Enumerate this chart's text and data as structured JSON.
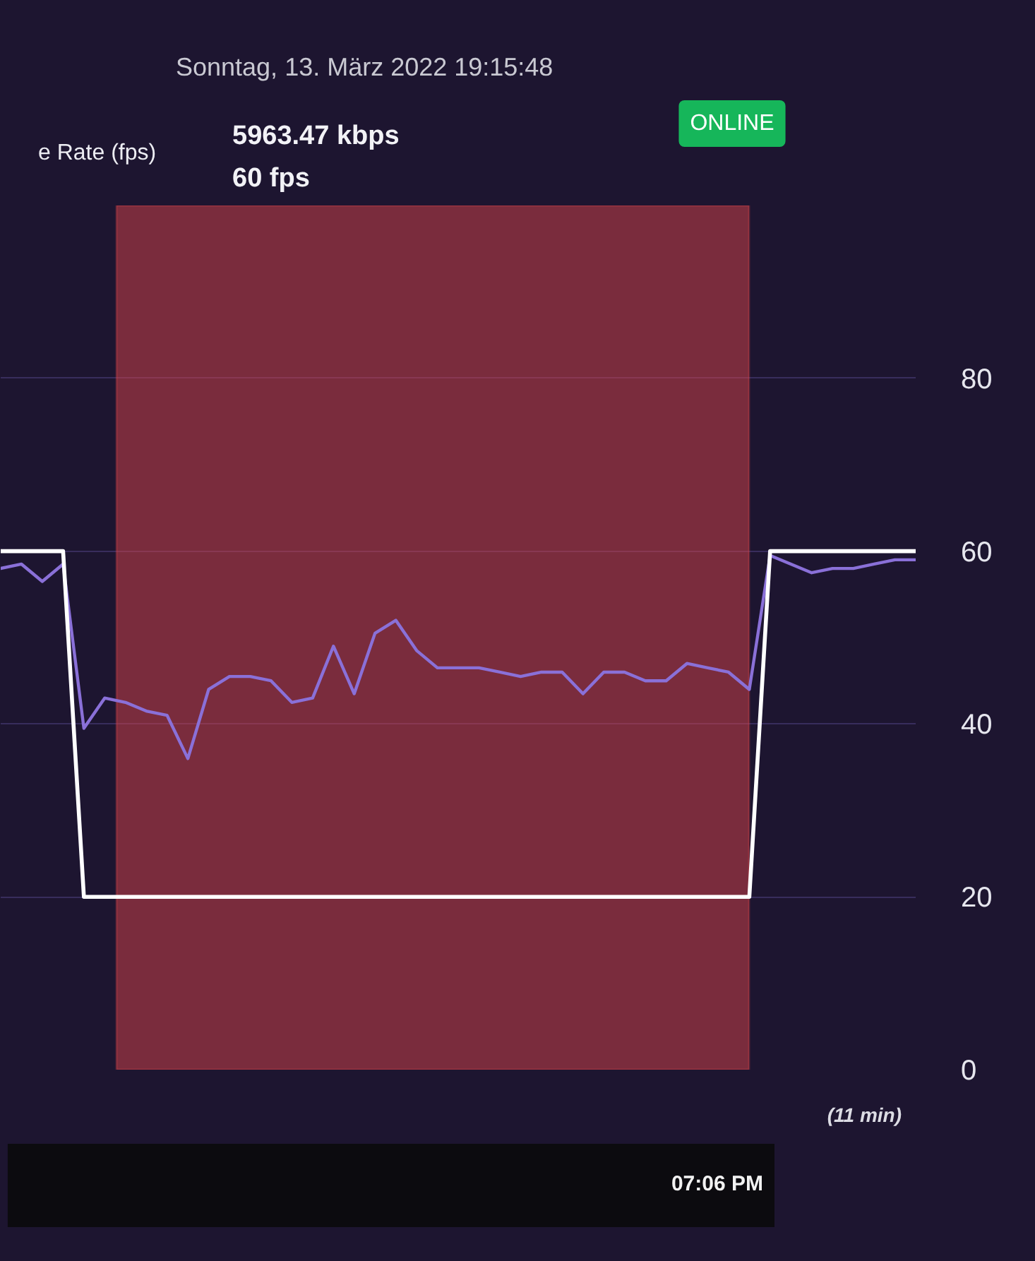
{
  "chart_data": {
    "type": "line",
    "categories": [
      null,
      null,
      null,
      null,
      null,
      null,
      null,
      null,
      null,
      null,
      null,
      null,
      null,
      null,
      null,
      null,
      null,
      null,
      null,
      null,
      null,
      null,
      null,
      null,
      null,
      null,
      null,
      null,
      null,
      null,
      null,
      null,
      null,
      null,
      null,
      null,
      null,
      null,
      null,
      null,
      null,
      null,
      null,
      null,
      null
    ],
    "series": [
      {
        "color": "#8a70d8",
        "values": [
          58,
          58.5,
          56.5,
          58.5,
          39.5,
          43,
          42.5,
          41.5,
          41,
          36,
          44,
          45.5,
          45.5,
          45,
          42.5,
          43,
          49,
          43.5,
          50.5,
          52,
          48.5,
          46.5,
          46.5,
          46.5,
          46,
          45.5,
          46,
          46,
          43.5,
          46,
          46,
          45,
          45,
          47,
          46.5,
          46,
          44,
          59.5,
          58.5,
          57.5,
          58,
          58,
          58.5,
          59,
          59
        ]
      },
      {
        "name": "e Rate (fps)",
        "color": "#ffffff",
        "values": [
          60,
          60,
          60,
          60,
          20,
          20,
          20,
          20,
          20,
          20,
          20,
          20,
          20,
          20,
          20,
          20,
          20,
          20,
          20,
          20,
          20,
          20,
          20,
          20,
          20,
          20,
          20,
          20,
          20,
          20,
          20,
          20,
          20,
          20,
          20,
          20,
          20,
          60,
          60,
          60,
          60,
          60,
          60,
          60,
          60
        ]
      }
    ],
    "ylim": [
      0,
      100
    ],
    "yticks": [
      0,
      20,
      40,
      60,
      80
    ],
    "annotations": [
      "Sonntag, 13. März 2022 19:15:48",
      "5963.47 kbps",
      "60 fps",
      "ONLINE",
      "(11 min)",
      "07:06 PM"
    ],
    "grid": "y",
    "legend": "top left",
    "tick_labels": "y",
    "line_style": "solid"
  }
}
